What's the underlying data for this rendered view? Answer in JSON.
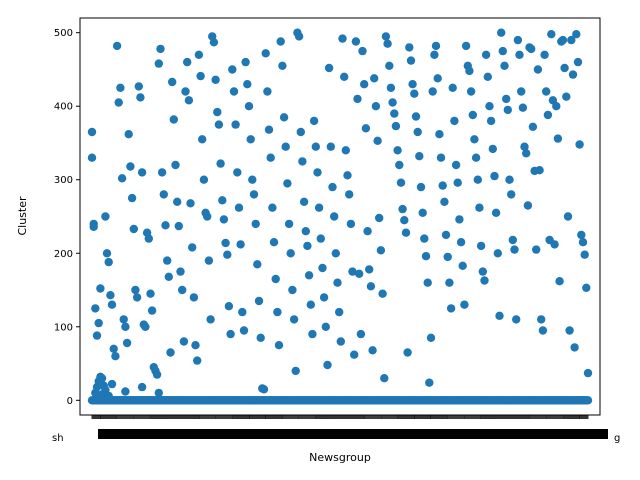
{
  "chart_data": {
    "type": "scatter",
    "title": "",
    "xlabel": "Newsgroup",
    "ylabel": "Cluster",
    "ylim": [
      -20,
      520
    ],
    "yticks": [
      0,
      100,
      200,
      300,
      400,
      500
    ],
    "marker_color": "#1f77b4",
    "grid": false,
    "legend": "none",
    "x_tick_labels": {
      "visible_left": "sh",
      "visible_right": "g",
      "note": "category tick labels overlap and are unreadable"
    },
    "category_count": 500,
    "clusters_at_zero": "all categories",
    "points": [
      [
        0,
        330
      ],
      [
        0,
        365
      ],
      [
        1,
        236
      ],
      [
        1,
        240
      ],
      [
        2,
        125
      ],
      [
        3,
        88
      ],
      [
        4,
        105
      ],
      [
        5,
        152
      ],
      [
        6,
        30
      ],
      [
        7,
        20
      ],
      [
        8,
        250
      ],
      [
        9,
        200
      ],
      [
        10,
        188
      ],
      [
        11,
        143
      ],
      [
        12,
        130
      ],
      [
        13,
        70
      ],
      [
        14,
        60
      ],
      [
        15,
        482
      ],
      [
        16,
        405
      ],
      [
        17,
        425
      ],
      [
        18,
        302
      ],
      [
        19,
        110
      ],
      [
        20,
        100
      ],
      [
        21,
        78
      ],
      [
        22,
        362
      ],
      [
        23,
        318
      ],
      [
        24,
        275
      ],
      [
        25,
        233
      ],
      [
        26,
        150
      ],
      [
        27,
        140
      ],
      [
        28,
        427
      ],
      [
        29,
        412
      ],
      [
        30,
        310
      ],
      [
        31,
        103
      ],
      [
        32,
        100
      ],
      [
        33,
        228
      ],
      [
        34,
        220
      ],
      [
        35,
        145
      ],
      [
        36,
        122
      ],
      [
        37,
        45
      ],
      [
        38,
        40
      ],
      [
        39,
        35
      ],
      [
        40,
        458
      ],
      [
        41,
        478
      ],
      [
        42,
        310
      ],
      [
        43,
        280
      ],
      [
        44,
        238
      ],
      [
        45,
        190
      ],
      [
        46,
        168
      ],
      [
        47,
        65
      ],
      [
        48,
        433
      ],
      [
        49,
        382
      ],
      [
        50,
        320
      ],
      [
        51,
        270
      ],
      [
        52,
        237
      ],
      [
        53,
        175
      ],
      [
        54,
        150
      ],
      [
        55,
        80
      ],
      [
        56,
        420
      ],
      [
        57,
        460
      ],
      [
        58,
        408
      ],
      [
        59,
        268
      ],
      [
        60,
        208
      ],
      [
        61,
        140
      ],
      [
        62,
        75
      ],
      [
        63,
        54
      ],
      [
        64,
        470
      ],
      [
        65,
        441
      ],
      [
        66,
        355
      ],
      [
        67,
        300
      ],
      [
        68,
        255
      ],
      [
        69,
        250
      ],
      [
        70,
        190
      ],
      [
        71,
        110
      ],
      [
        72,
        495
      ],
      [
        73,
        487
      ],
      [
        74,
        436
      ],
      [
        75,
        392
      ],
      [
        76,
        375
      ],
      [
        77,
        322
      ],
      [
        78,
        272
      ],
      [
        79,
        246
      ],
      [
        80,
        214
      ],
      [
        81,
        198
      ],
      [
        82,
        128
      ],
      [
        83,
        90
      ],
      [
        84,
        450
      ],
      [
        85,
        420
      ],
      [
        86,
        375
      ],
      [
        87,
        310
      ],
      [
        88,
        262
      ],
      [
        89,
        212
      ],
      [
        90,
        120
      ],
      [
        91,
        95
      ],
      [
        92,
        460
      ],
      [
        93,
        430
      ],
      [
        94,
        400
      ],
      [
        95,
        355
      ],
      [
        96,
        300
      ],
      [
        97,
        280
      ],
      [
        98,
        240
      ],
      [
        99,
        185
      ],
      [
        100,
        135
      ],
      [
        101,
        85
      ],
      [
        102,
        16
      ],
      [
        103,
        15
      ],
      [
        104,
        472
      ],
      [
        105,
        420
      ],
      [
        106,
        368
      ],
      [
        107,
        330
      ],
      [
        108,
        262
      ],
      [
        109,
        215
      ],
      [
        110,
        165
      ],
      [
        111,
        120
      ],
      [
        112,
        75
      ],
      [
        113,
        488
      ],
      [
        114,
        455
      ],
      [
        115,
        385
      ],
      [
        116,
        345
      ],
      [
        117,
        295
      ],
      [
        118,
        240
      ],
      [
        119,
        200
      ],
      [
        120,
        150
      ],
      [
        121,
        110
      ],
      [
        122,
        40
      ],
      [
        123,
        500
      ],
      [
        124,
        495
      ],
      [
        125,
        365
      ],
      [
        126,
        325
      ],
      [
        127,
        270
      ],
      [
        128,
        230
      ],
      [
        129,
        210
      ],
      [
        130,
        170
      ],
      [
        131,
        130
      ],
      [
        132,
        90
      ],
      [
        133,
        380
      ],
      [
        134,
        345
      ],
      [
        135,
        310
      ],
      [
        136,
        262
      ],
      [
        137,
        220
      ],
      [
        138,
        180
      ],
      [
        139,
        140
      ],
      [
        140,
        100
      ],
      [
        141,
        48
      ],
      [
        142,
        452
      ],
      [
        143,
        345
      ],
      [
        144,
        290
      ],
      [
        145,
        250
      ],
      [
        146,
        200
      ],
      [
        147,
        160
      ],
      [
        148,
        120
      ],
      [
        149,
        80
      ],
      [
        150,
        492
      ],
      [
        151,
        440
      ],
      [
        152,
        340
      ],
      [
        153,
        306
      ],
      [
        154,
        280
      ],
      [
        155,
        240
      ],
      [
        156,
        175
      ],
      [
        157,
        62
      ],
      [
        158,
        488
      ],
      [
        159,
        410
      ],
      [
        160,
        172
      ],
      [
        161,
        90
      ],
      [
        162,
        475
      ],
      [
        163,
        430
      ],
      [
        164,
        370
      ],
      [
        165,
        230
      ],
      [
        166,
        178
      ],
      [
        167,
        155
      ],
      [
        168,
        68
      ],
      [
        169,
        438
      ],
      [
        170,
        400
      ],
      [
        171,
        353
      ],
      [
        172,
        248
      ],
      [
        173,
        204
      ],
      [
        174,
        145
      ],
      [
        175,
        30
      ],
      [
        176,
        495
      ],
      [
        177,
        485
      ],
      [
        178,
        455
      ],
      [
        179,
        425
      ],
      [
        180,
        405
      ],
      [
        181,
        390
      ],
      [
        182,
        373
      ],
      [
        183,
        340
      ],
      [
        184,
        320
      ],
      [
        185,
        296
      ],
      [
        186,
        260
      ],
      [
        187,
        245
      ],
      [
        188,
        228
      ],
      [
        189,
        65
      ],
      [
        190,
        480
      ],
      [
        191,
        462
      ],
      [
        192,
        430
      ],
      [
        193,
        417
      ],
      [
        194,
        386
      ],
      [
        195,
        365
      ],
      [
        196,
        332
      ],
      [
        197,
        290
      ],
      [
        198,
        255
      ],
      [
        199,
        220
      ],
      [
        200,
        196
      ],
      [
        201,
        160
      ],
      [
        202,
        24
      ],
      [
        203,
        85
      ],
      [
        204,
        420
      ],
      [
        205,
        470
      ],
      [
        206,
        482
      ],
      [
        207,
        438
      ],
      [
        208,
        362
      ],
      [
        209,
        330
      ],
      [
        210,
        292
      ],
      [
        211,
        270
      ],
      [
        212,
        225
      ],
      [
        213,
        195
      ],
      [
        214,
        160
      ],
      [
        215,
        125
      ],
      [
        216,
        425
      ],
      [
        217,
        380
      ],
      [
        218,
        320
      ],
      [
        219,
        296
      ],
      [
        220,
        246
      ],
      [
        221,
        215
      ],
      [
        222,
        183
      ],
      [
        223,
        130
      ],
      [
        224,
        482
      ],
      [
        225,
        455
      ],
      [
        226,
        448
      ],
      [
        227,
        420
      ],
      [
        228,
        388
      ],
      [
        229,
        355
      ],
      [
        230,
        330
      ],
      [
        231,
        300
      ],
      [
        232,
        262
      ],
      [
        233,
        210
      ],
      [
        234,
        175
      ],
      [
        235,
        163
      ],
      [
        236,
        470
      ],
      [
        237,
        440
      ],
      [
        238,
        400
      ],
      [
        239,
        380
      ],
      [
        240,
        342
      ],
      [
        241,
        305
      ],
      [
        242,
        255
      ],
      [
        243,
        200
      ],
      [
        244,
        115
      ],
      [
        245,
        500
      ],
      [
        246,
        475
      ],
      [
        247,
        455
      ],
      [
        248,
        410
      ],
      [
        249,
        395
      ],
      [
        250,
        300
      ],
      [
        251,
        280
      ],
      [
        252,
        218
      ],
      [
        253,
        205
      ],
      [
        254,
        110
      ],
      [
        255,
        490
      ],
      [
        256,
        470
      ],
      [
        257,
        420
      ],
      [
        258,
        398
      ],
      [
        259,
        345
      ],
      [
        260,
        336
      ],
      [
        261,
        265
      ],
      [
        262,
        480
      ],
      [
        263,
        478
      ],
      [
        264,
        372
      ],
      [
        265,
        312
      ],
      [
        266,
        205
      ],
      [
        267,
        450
      ],
      [
        268,
        313
      ],
      [
        269,
        110
      ],
      [
        270,
        95
      ],
      [
        271,
        470
      ],
      [
        272,
        420
      ],
      [
        273,
        388
      ],
      [
        274,
        218
      ],
      [
        275,
        498
      ],
      [
        276,
        408
      ],
      [
        277,
        212
      ],
      [
        278,
        400
      ],
      [
        279,
        356
      ],
      [
        280,
        162
      ],
      [
        281,
        488
      ],
      [
        282,
        490
      ],
      [
        283,
        452
      ],
      [
        284,
        413
      ],
      [
        285,
        250
      ],
      [
        286,
        95
      ],
      [
        287,
        490
      ],
      [
        288,
        443
      ],
      [
        289,
        72
      ],
      [
        290,
        498
      ],
      [
        291,
        460
      ],
      [
        292,
        348
      ],
      [
        293,
        225
      ],
      [
        294,
        215
      ],
      [
        295,
        198
      ],
      [
        296,
        153
      ],
      [
        297,
        37
      ]
    ]
  }
}
